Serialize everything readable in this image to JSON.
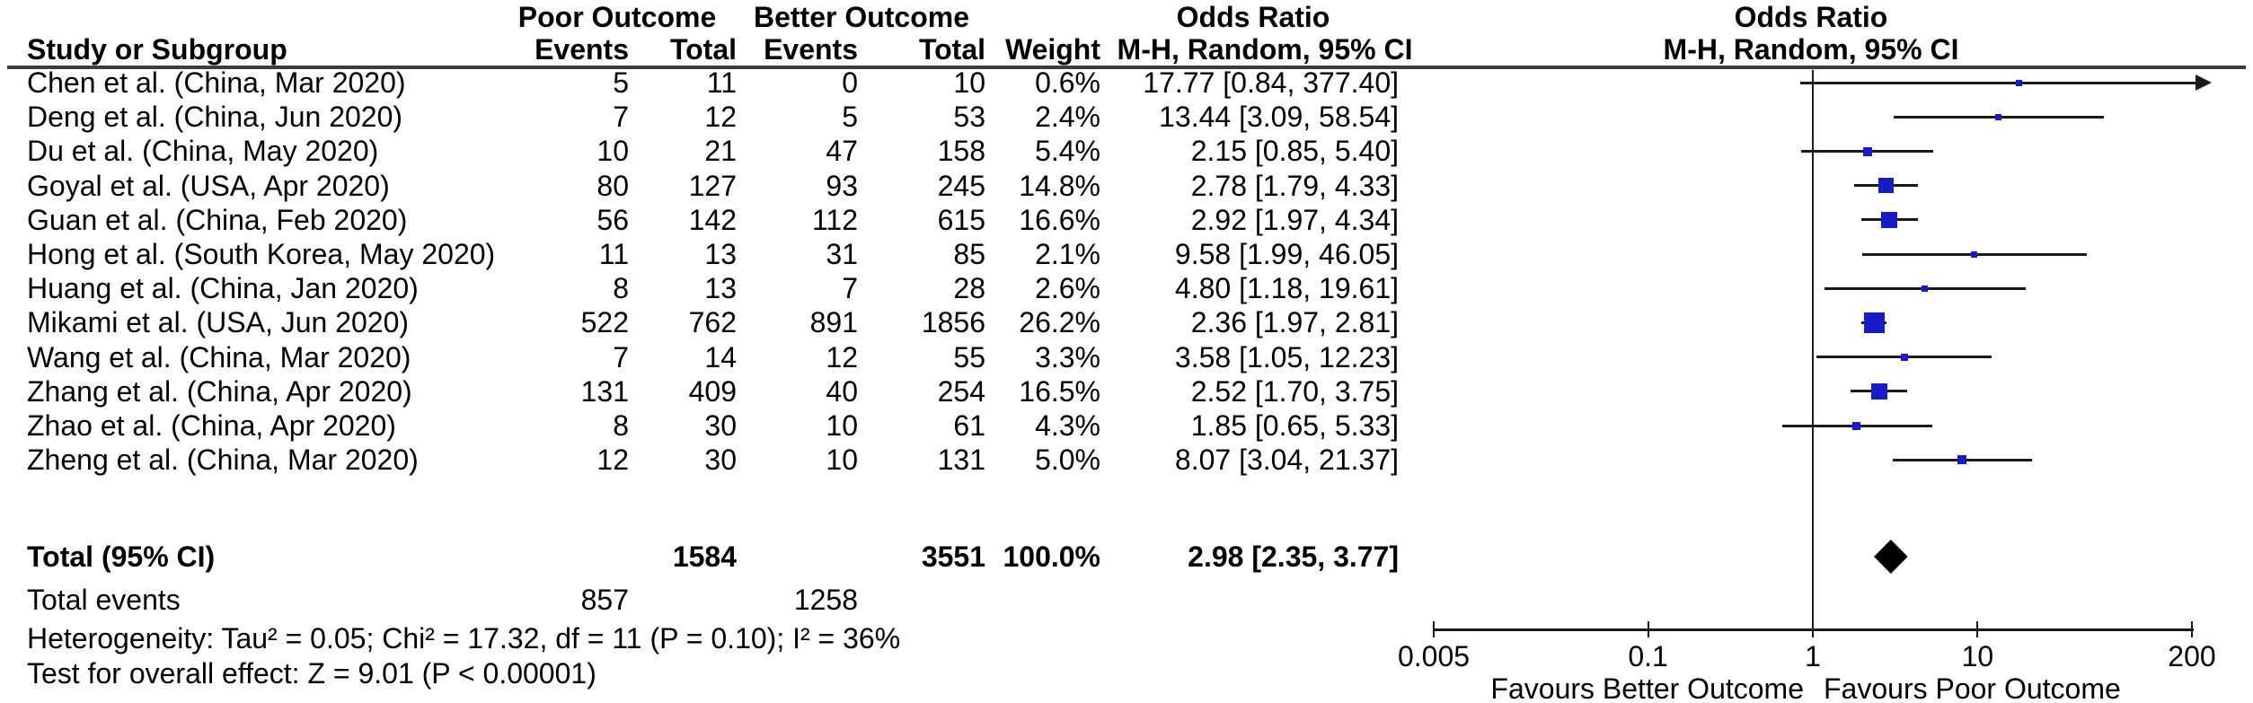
{
  "header": {
    "col_study": "Study or Subgroup",
    "group_left": "Poor Outcome",
    "group_right": "Better Outcome",
    "col_events": "Events",
    "col_total": "Total",
    "col_weight": "Weight",
    "or_col_title": "Odds Ratio",
    "or_col_sub": "M-H, Random, 95% CI",
    "plot_title": "Odds Ratio",
    "plot_sub": "M-H, Random, 95% CI"
  },
  "chart_data": {
    "type": "forest_plot",
    "effect_measure": "Odds Ratio, M-H, Random, 95% CI",
    "x_scale": "log",
    "axis_range": [
      0.005,
      200
    ],
    "axis_tick_labels": [
      "0.005",
      "0.1",
      "1",
      "10",
      "200"
    ],
    "axis_tick_values": [
      0.005,
      0.1,
      1,
      10,
      200
    ],
    "favours_left": "Favours Better Outcome",
    "favours_right": "Favours Poor Outcome",
    "marker_color": "#1b1bc3",
    "line_color": "#1a1a1a",
    "diamond_color": "#000000",
    "studies": [
      {
        "study": "Chen et al. (China, Mar 2020)",
        "events1": 5,
        "total1": 11,
        "events2": 0,
        "total2": 10,
        "weight_label": "0.6%",
        "weight": 0.6,
        "or": 17.77,
        "ci_low": 0.84,
        "ci_high": 377.4,
        "ci_label": "17.77 [0.84, 377.40]"
      },
      {
        "study": "Deng et al. (China, Jun 2020)",
        "events1": 7,
        "total1": 12,
        "events2": 5,
        "total2": 53,
        "weight_label": "2.4%",
        "weight": 2.4,
        "or": 13.44,
        "ci_low": 3.09,
        "ci_high": 58.54,
        "ci_label": "13.44 [3.09, 58.54]"
      },
      {
        "study": "Du et al. (China, May 2020)",
        "events1": 10,
        "total1": 21,
        "events2": 47,
        "total2": 158,
        "weight_label": "5.4%",
        "weight": 5.4,
        "or": 2.15,
        "ci_low": 0.85,
        "ci_high": 5.4,
        "ci_label": "2.15 [0.85, 5.40]"
      },
      {
        "study": "Goyal et al. (USA, Apr 2020)",
        "events1": 80,
        "total1": 127,
        "events2": 93,
        "total2": 245,
        "weight_label": "14.8%",
        "weight": 14.8,
        "or": 2.78,
        "ci_low": 1.79,
        "ci_high": 4.33,
        "ci_label": "2.78 [1.79, 4.33]"
      },
      {
        "study": "Guan et al. (China, Feb 2020)",
        "events1": 56,
        "total1": 142,
        "events2": 112,
        "total2": 615,
        "weight_label": "16.6%",
        "weight": 16.6,
        "or": 2.92,
        "ci_low": 1.97,
        "ci_high": 4.34,
        "ci_label": "2.92 [1.97, 4.34]"
      },
      {
        "study": "Hong et al. (South Korea, May 2020)",
        "events1": 11,
        "total1": 13,
        "events2": 31,
        "total2": 85,
        "weight_label": "2.1%",
        "weight": 2.1,
        "or": 9.58,
        "ci_low": 1.99,
        "ci_high": 46.05,
        "ci_label": "9.58 [1.99, 46.05]"
      },
      {
        "study": "Huang et al. (China, Jan 2020)",
        "events1": 8,
        "total1": 13,
        "events2": 7,
        "total2": 28,
        "weight_label": "2.6%",
        "weight": 2.6,
        "or": 4.8,
        "ci_low": 1.18,
        "ci_high": 19.61,
        "ci_label": "4.80 [1.18, 19.61]"
      },
      {
        "study": "Mikami et al. (USA, Jun 2020)",
        "events1": 522,
        "total1": 762,
        "events2": 891,
        "total2": 1856,
        "weight_label": "26.2%",
        "weight": 26.2,
        "or": 2.36,
        "ci_low": 1.97,
        "ci_high": 2.81,
        "ci_label": "2.36 [1.97, 2.81]"
      },
      {
        "study": "Wang et al. (China, Mar 2020)",
        "events1": 7,
        "total1": 14,
        "events2": 12,
        "total2": 55,
        "weight_label": "3.3%",
        "weight": 3.3,
        "or": 3.58,
        "ci_low": 1.05,
        "ci_high": 12.23,
        "ci_label": "3.58 [1.05, 12.23]"
      },
      {
        "study": "Zhang et al. (China, Apr 2020)",
        "events1": 131,
        "total1": 409,
        "events2": 40,
        "total2": 254,
        "weight_label": "16.5%",
        "weight": 16.5,
        "or": 2.52,
        "ci_low": 1.7,
        "ci_high": 3.75,
        "ci_label": "2.52 [1.70, 3.75]"
      },
      {
        "study": "Zhao et al. (China, Apr 2020)",
        "events1": 8,
        "total1": 30,
        "events2": 10,
        "total2": 61,
        "weight_label": "4.3%",
        "weight": 4.3,
        "or": 1.85,
        "ci_low": 0.65,
        "ci_high": 5.33,
        "ci_label": "1.85 [0.65, 5.33]"
      },
      {
        "study": "Zheng et al. (China, Mar 2020)",
        "events1": 12,
        "total1": 30,
        "events2": 10,
        "total2": 131,
        "weight_label": "5.0%",
        "weight": 5.0,
        "or": 8.07,
        "ci_low": 3.04,
        "ci_high": 21.37,
        "ci_label": "8.07 [3.04, 21.37]"
      }
    ],
    "total": {
      "label": "Total (95% CI)",
      "total1": "1584",
      "total2": "3551",
      "weight_label": "100.0%",
      "or": 2.98,
      "ci_low": 2.35,
      "ci_high": 3.77,
      "ci_label": "2.98 [2.35, 3.77]"
    },
    "total_events": {
      "label": "Total events",
      "events1": "857",
      "events2": "1258"
    },
    "heterogeneity": "Heterogeneity: Tau² = 0.05; Chi² = 17.32, df = 11 (P = 0.10); I² = 36%",
    "overall_effect": "Test for overall effect: Z = 9.01 (P < 0.00001)"
  }
}
